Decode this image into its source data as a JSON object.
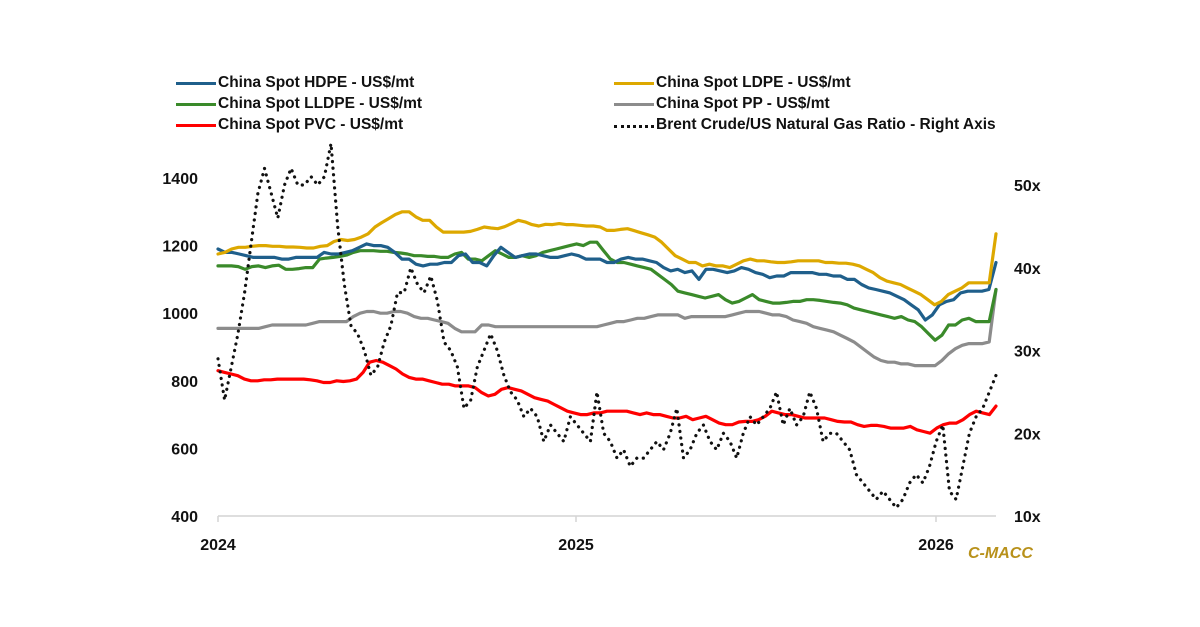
{
  "chart_data": {
    "type": "line",
    "title": "",
    "xlabel": "",
    "ylabel": "",
    "y2label": "",
    "x_start": "2024-01-05",
    "x_frequency": "weekly",
    "x_ticks": [
      "2024",
      "2025",
      "2026"
    ],
    "ylim": [
      400,
      1500
    ],
    "y_ticks": [
      400,
      600,
      800,
      1000,
      1200,
      1400
    ],
    "y2lim": [
      10,
      52
    ],
    "y2_ticks": [
      "10x",
      "20x",
      "30x",
      "40x",
      "50x"
    ],
    "y2_tick_values": [
      10,
      20,
      30,
      40,
      50
    ],
    "grid": false,
    "legend_position": "top",
    "source_label": "C-MACC",
    "series": [
      {
        "name": "China Spot HDPE - US$/mt",
        "axis": "left",
        "color": "#1F5F8B",
        "style": "solid",
        "values": [
          1190,
          1180,
          1180,
          1175,
          1170,
          1165,
          1165,
          1165,
          1165,
          1160,
          1160,
          1165,
          1165,
          1165,
          1165,
          1180,
          1175,
          1175,
          1180,
          1185,
          1195,
          1205,
          1200,
          1200,
          1195,
          1180,
          1160,
          1160,
          1145,
          1140,
          1145,
          1145,
          1150,
          1150,
          1170,
          1175,
          1150,
          1150,
          1140,
          1170,
          1195,
          1180,
          1165,
          1170,
          1175,
          1175,
          1170,
          1165,
          1165,
          1170,
          1175,
          1170,
          1160,
          1160,
          1160,
          1150,
          1150,
          1160,
          1165,
          1160,
          1160,
          1155,
          1150,
          1135,
          1125,
          1130,
          1120,
          1125,
          1100,
          1130,
          1130,
          1125,
          1120,
          1125,
          1135,
          1130,
          1120,
          1115,
          1105,
          1110,
          1110,
          1120,
          1120,
          1120,
          1120,
          1115,
          1115,
          1110,
          1110,
          1100,
          1100,
          1085,
          1075,
          1070,
          1065,
          1060,
          1050,
          1040,
          1025,
          1010,
          980,
          995,
          1025,
          1035,
          1040,
          1060,
          1065,
          1065,
          1065,
          1070,
          1150
        ]
      },
      {
        "name": "China Spot LDPE - US$/mt",
        "axis": "left",
        "color": "#DDA800",
        "style": "solid",
        "values": [
          1175,
          1180,
          1190,
          1195,
          1195,
          1198,
          1200,
          1200,
          1198,
          1198,
          1196,
          1196,
          1195,
          1193,
          1193,
          1198,
          1200,
          1212,
          1218,
          1215,
          1218,
          1225,
          1235,
          1255,
          1268,
          1280,
          1292,
          1300,
          1300,
          1285,
          1275,
          1275,
          1255,
          1240,
          1240,
          1240,
          1240,
          1242,
          1248,
          1255,
          1252,
          1250,
          1256,
          1265,
          1275,
          1270,
          1262,
          1258,
          1263,
          1262,
          1265,
          1262,
          1262,
          1260,
          1258,
          1258,
          1255,
          1245,
          1245,
          1248,
          1250,
          1244,
          1238,
          1232,
          1225,
          1210,
          1190,
          1170,
          1160,
          1150,
          1150,
          1140,
          1145,
          1140,
          1140,
          1135,
          1145,
          1155,
          1160,
          1155,
          1155,
          1152,
          1150,
          1150,
          1152,
          1155,
          1155,
          1155,
          1155,
          1150,
          1150,
          1148,
          1148,
          1145,
          1140,
          1130,
          1120,
          1105,
          1095,
          1090,
          1085,
          1075,
          1065,
          1055,
          1040,
          1025,
          1035,
          1055,
          1065,
          1075,
          1090,
          1090,
          1090,
          1090,
          1235
        ]
      },
      {
        "name": "China Spot LLDPE - US$/mt",
        "axis": "left",
        "color": "#3A8A2A",
        "style": "solid",
        "values": [
          1140,
          1140,
          1140,
          1138,
          1130,
          1138,
          1140,
          1135,
          1140,
          1142,
          1130,
          1130,
          1132,
          1135,
          1135,
          1160,
          1163,
          1165,
          1168,
          1172,
          1180,
          1185,
          1185,
          1185,
          1183,
          1183,
          1180,
          1178,
          1175,
          1170,
          1170,
          1168,
          1168,
          1165,
          1165,
          1175,
          1180,
          1160,
          1160,
          1155,
          1170,
          1185,
          1175,
          1165,
          1165,
          1170,
          1165,
          1170,
          1180,
          1185,
          1190,
          1195,
          1200,
          1205,
          1200,
          1210,
          1210,
          1185,
          1160,
          1150,
          1150,
          1145,
          1140,
          1135,
          1130,
          1115,
          1100,
          1085,
          1065,
          1060,
          1055,
          1050,
          1045,
          1050,
          1055,
          1040,
          1030,
          1035,
          1045,
          1055,
          1040,
          1035,
          1030,
          1030,
          1032,
          1035,
          1035,
          1040,
          1040,
          1038,
          1035,
          1032,
          1030,
          1025,
          1015,
          1010,
          1005,
          1000,
          995,
          990,
          985,
          990,
          980,
          975,
          960,
          940,
          920,
          935,
          965,
          965,
          980,
          985,
          975,
          975,
          975,
          1070
        ]
      },
      {
        "name": "China Spot PP - US$/mt",
        "axis": "left",
        "color": "#8C8C8C",
        "style": "solid",
        "values": [
          955,
          955,
          955,
          955,
          955,
          955,
          955,
          960,
          965,
          965,
          965,
          965,
          965,
          965,
          970,
          975,
          975,
          975,
          975,
          975,
          990,
          1000,
          1005,
          1005,
          1000,
          1000,
          1005,
          1005,
          1000,
          990,
          985,
          985,
          980,
          975,
          970,
          955,
          945,
          945,
          945,
          965,
          965,
          960,
          960,
          960,
          960,
          960,
          960,
          960,
          960,
          960,
          960,
          960,
          960,
          960,
          960,
          960,
          960,
          965,
          970,
          975,
          975,
          980,
          985,
          985,
          990,
          995,
          995,
          995,
          995,
          985,
          990,
          990,
          990,
          990,
          990,
          990,
          995,
          1000,
          1005,
          1005,
          1005,
          1000,
          995,
          995,
          990,
          980,
          975,
          970,
          960,
          955,
          950,
          945,
          935,
          925,
          915,
          900,
          885,
          870,
          860,
          855,
          855,
          850,
          850,
          845,
          845,
          845,
          845,
          860,
          880,
          895,
          905,
          910,
          910,
          910,
          915,
          1070
        ]
      },
      {
        "name": "China Spot PVC - US$/mt",
        "axis": "left",
        "color": "#FF0000",
        "style": "solid",
        "values": [
          830,
          825,
          820,
          815,
          805,
          800,
          800,
          803,
          803,
          805,
          805,
          805,
          805,
          805,
          803,
          800,
          795,
          795,
          800,
          798,
          800,
          805,
          825,
          855,
          860,
          855,
          845,
          835,
          820,
          810,
          805,
          805,
          800,
          795,
          790,
          790,
          785,
          785,
          785,
          780,
          765,
          755,
          760,
          775,
          780,
          775,
          770,
          760,
          750,
          745,
          740,
          730,
          720,
          710,
          705,
          700,
          700,
          705,
          705,
          710,
          710,
          710,
          710,
          705,
          700,
          705,
          700,
          700,
          695,
          690,
          690,
          695,
          685,
          690,
          695,
          685,
          675,
          670,
          670,
          678,
          680,
          680,
          685,
          695,
          710,
          705,
          700,
          700,
          695,
          690,
          690,
          690,
          690,
          685,
          680,
          678,
          678,
          670,
          665,
          668,
          668,
          665,
          660,
          660,
          660,
          665,
          655,
          650,
          645,
          660,
          670,
          675,
          675,
          685,
          700,
          710,
          705,
          700,
          725
        ]
      },
      {
        "name": "Brent Crude/US Natural Gas Ratio - Right Axis",
        "axis": "right",
        "color": "#111111",
        "style": "dotted",
        "values": [
          29,
          24,
          28,
          32,
          37,
          43,
          49,
          52,
          49,
          46,
          50,
          52,
          50,
          50,
          51,
          50,
          51,
          55,
          45,
          38,
          33,
          32,
          30,
          27,
          28,
          31,
          33,
          37,
          37,
          40,
          38,
          37,
          39,
          36,
          31,
          30,
          28,
          23,
          24,
          28,
          30,
          32,
          30,
          27,
          25,
          24,
          22,
          23,
          22,
          19,
          21,
          20,
          19,
          22,
          21,
          20,
          19,
          25,
          20,
          19,
          17,
          18,
          16,
          17,
          17,
          18,
          19,
          18,
          20,
          23,
          17,
          18,
          20,
          21,
          19,
          18,
          20,
          19,
          17,
          20,
          22,
          21,
          22,
          23,
          25,
          21,
          23,
          21,
          22,
          25,
          23,
          19,
          20,
          20,
          19,
          18,
          15,
          14,
          13,
          12,
          13,
          12,
          11,
          12,
          14,
          15,
          14,
          16,
          19,
          21,
          13,
          12,
          16,
          20,
          22,
          23,
          25,
          27
        ]
      }
    ]
  }
}
